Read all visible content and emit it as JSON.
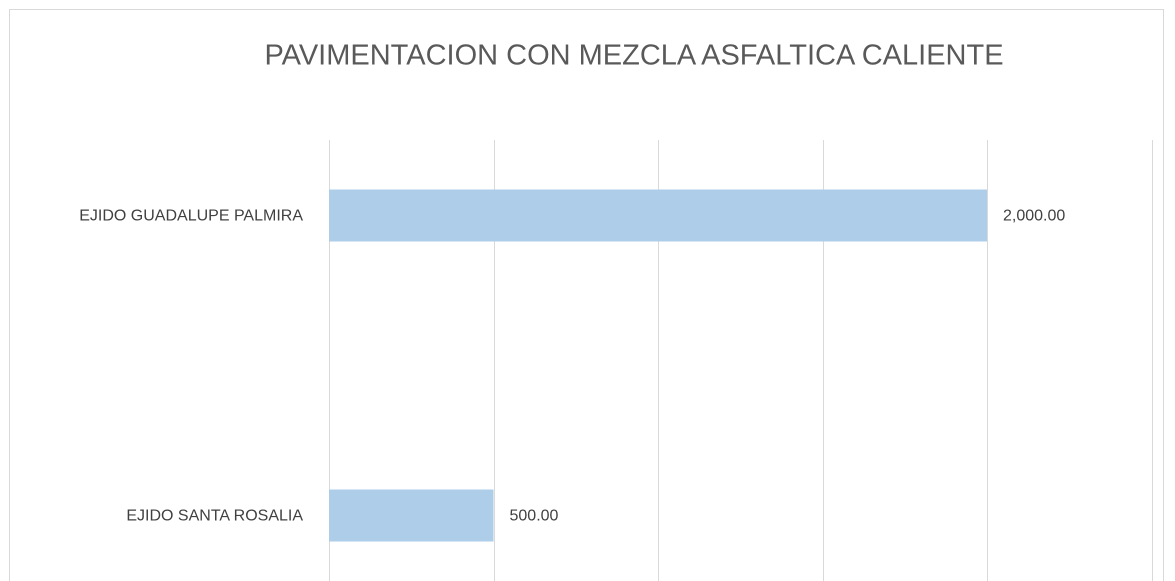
{
  "chart_data": {
    "type": "hbar",
    "title": "PAVIMENTACION CON MEZCLA ASFALTICA CALIENTE",
    "categories": [
      "EJIDO GUADALUPE PALMIRA",
      "EJIDO SANTA ROSALIA"
    ],
    "values": [
      2000,
      500
    ],
    "value_labels": [
      "2,000.00",
      "500.00"
    ],
    "color": "#aecde8",
    "xlim": [
      0,
      2500
    ],
    "xticks": [
      0,
      500,
      1000,
      1500,
      2000,
      2500
    ],
    "grid": true
  }
}
